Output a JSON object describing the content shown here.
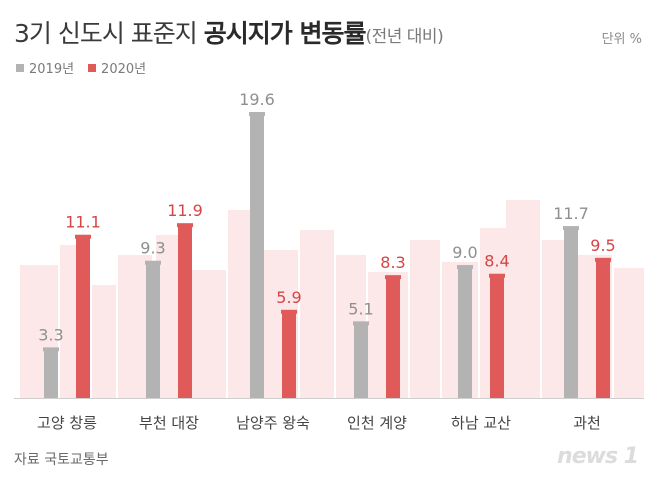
{
  "title": {
    "main": "3기 신도시 표준지 ",
    "bold": "공시지가 변동률",
    "sub": "(전년 대비)"
  },
  "unit": "단위 %",
  "source": "자료 국토교통부",
  "logo": "news 1",
  "colors": {
    "series_2019": "#b3b3b3",
    "series_2020": "#e05a5a",
    "background_city": "#fbe4e4"
  },
  "chart_data": {
    "type": "bar",
    "categories": [
      "고양 창릉",
      "부천 대장",
      "남양주 왕숙",
      "인천 계양",
      "하남 교산",
      "과천"
    ],
    "series": [
      {
        "name": "2019년",
        "values": [
          3.3,
          9.3,
          19.6,
          5.1,
          9.0,
          11.7
        ]
      },
      {
        "name": "2020년",
        "values": [
          11.1,
          11.9,
          5.9,
          8.3,
          8.4,
          9.5
        ]
      }
    ],
    "data_labels": [
      [
        "3.3",
        "9.3",
        "19.6",
        "5.1",
        "9.0",
        "11.7"
      ],
      [
        "11.1",
        "11.9",
        "5.9",
        "8.3",
        "8.4",
        "9.5"
      ]
    ],
    "title": "3기 신도시 표준지 공시지가 변동률",
    "ylabel": "",
    "ylim": [
      0,
      20
    ],
    "grid": false,
    "legend_placement": "top-left"
  }
}
